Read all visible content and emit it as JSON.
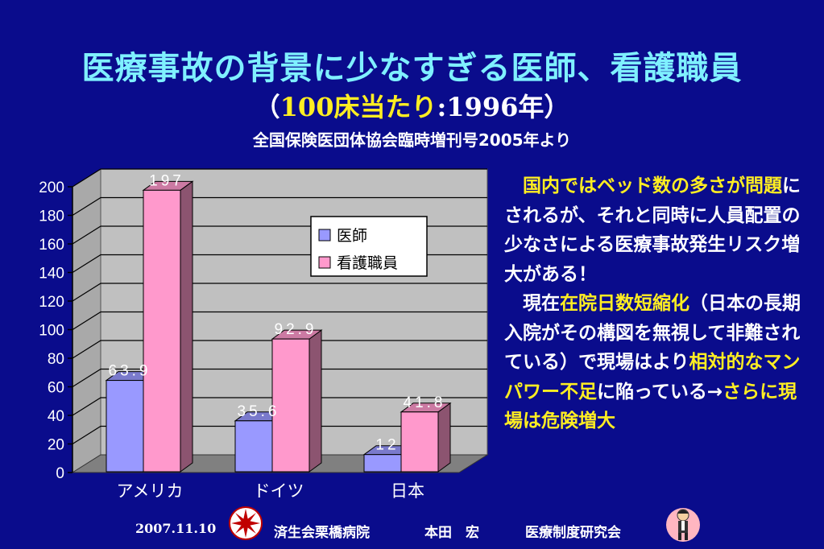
{
  "title": "医療事故の背景に少なすぎる医師、看護職員",
  "subtitle": {
    "open": "（",
    "num": "100",
    "unit": "床当たり",
    "sep": ":",
    "year": "1996",
    "year_suffix": "年）"
  },
  "source": "全国保険医団体協会臨時増刊号2005年より",
  "chart_data": {
    "type": "bar",
    "categories": [
      "アメリカ",
      "ドイツ",
      "日本"
    ],
    "series": [
      {
        "name": "医師",
        "values": [
          63.9,
          35.6,
          12
        ],
        "labels": [
          "63.9",
          "35.6",
          "12"
        ],
        "color": "#9999ff"
      },
      {
        "name": "看護職員",
        "values": [
          197,
          92.9,
          41.8
        ],
        "labels": [
          "197",
          "92.9",
          "41.8"
        ],
        "color": "#ff99cc"
      }
    ],
    "ylim": [
      0,
      200
    ],
    "yticks": [
      0,
      20,
      40,
      60,
      80,
      100,
      120,
      140,
      160,
      180,
      200
    ],
    "grid": true,
    "legend_position": "right",
    "style": "3d"
  },
  "body_text": {
    "p1_lead": "国内ではベッド数の多さが問題",
    "p1_rest": "にされるが、それと同時に人員配置の少なさによる医療事故発生リスク増大がある！",
    "p2_a": "現在",
    "p2_b": "在院日数短縮化",
    "p2_c": "（日本の長期入院がその構図を無視して非難されている）で現場はより",
    "p2_d": "相対的なマンパワー不足",
    "p2_e": "に陥っている→",
    "p2_f": "さらに現場は危険増大"
  },
  "footer": {
    "date": "2007.11.10",
    "hospital": "済生会栗橋病院",
    "person": "本田　宏",
    "org": "医療制度研究会"
  },
  "colors": {
    "background": "#0a0c8c",
    "title": "#7ff0ff",
    "highlight": "#ffee22",
    "plot_wall": "#c0c0c0"
  },
  "icons": {
    "left": "hospital-logo-icon",
    "right": "cartoon-person-icon"
  }
}
